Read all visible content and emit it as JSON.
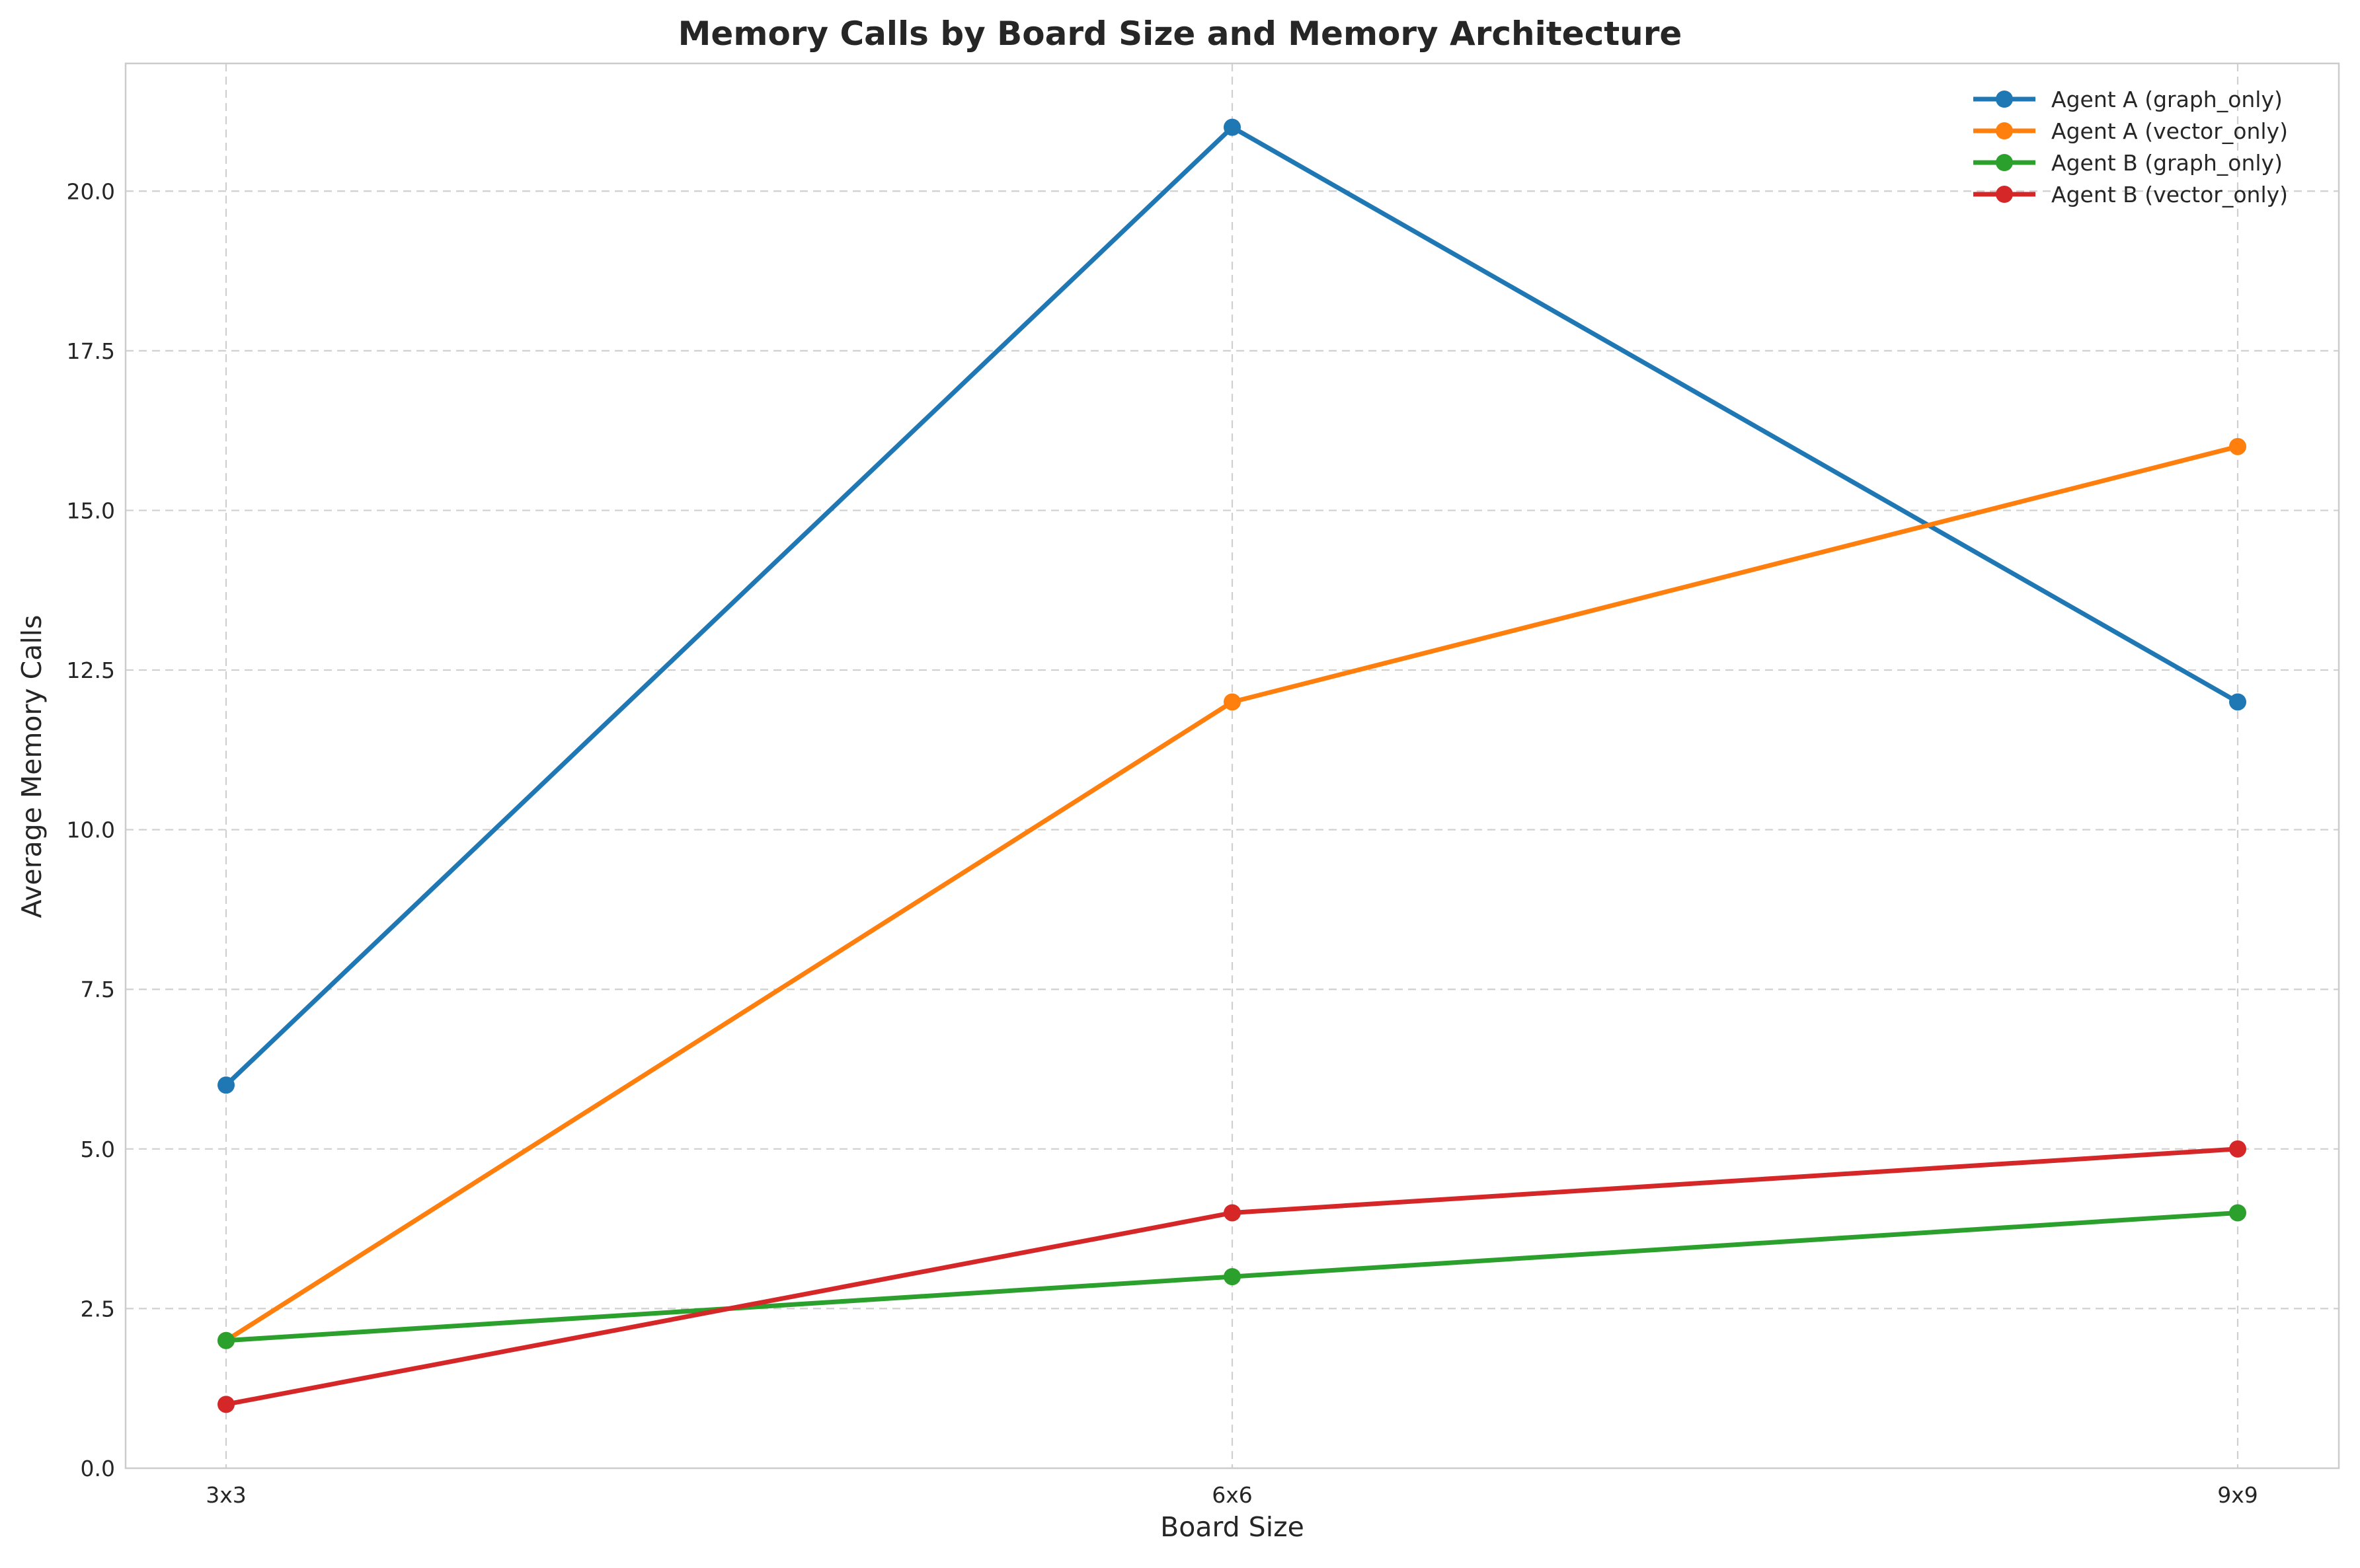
{
  "chart_data": {
    "type": "line",
    "title": "Memory Calls by Board Size and Memory Architecture",
    "xlabel": "Board Size",
    "ylabel": "Average Memory Calls",
    "categories": [
      "3x3",
      "6x6",
      "9x9"
    ],
    "ylim": [
      0,
      22
    ],
    "yticks": [
      "0.0",
      "2.5",
      "5.0",
      "7.5",
      "10.0",
      "12.5",
      "15.0",
      "17.5",
      "20.0"
    ],
    "grid": true,
    "legend_position": "top-right",
    "series": [
      {
        "name": "Agent A (graph_only)",
        "color": "#1f77b4",
        "values": [
          6,
          21,
          12
        ]
      },
      {
        "name": "Agent A (vector_only)",
        "color": "#ff7f0e",
        "values": [
          2,
          12,
          16
        ]
      },
      {
        "name": "Agent B (graph_only)",
        "color": "#2ca02c",
        "values": [
          2,
          3,
          4
        ]
      },
      {
        "name": "Agent B (vector_only)",
        "color": "#d62728",
        "values": [
          1,
          4,
          5
        ]
      }
    ]
  }
}
